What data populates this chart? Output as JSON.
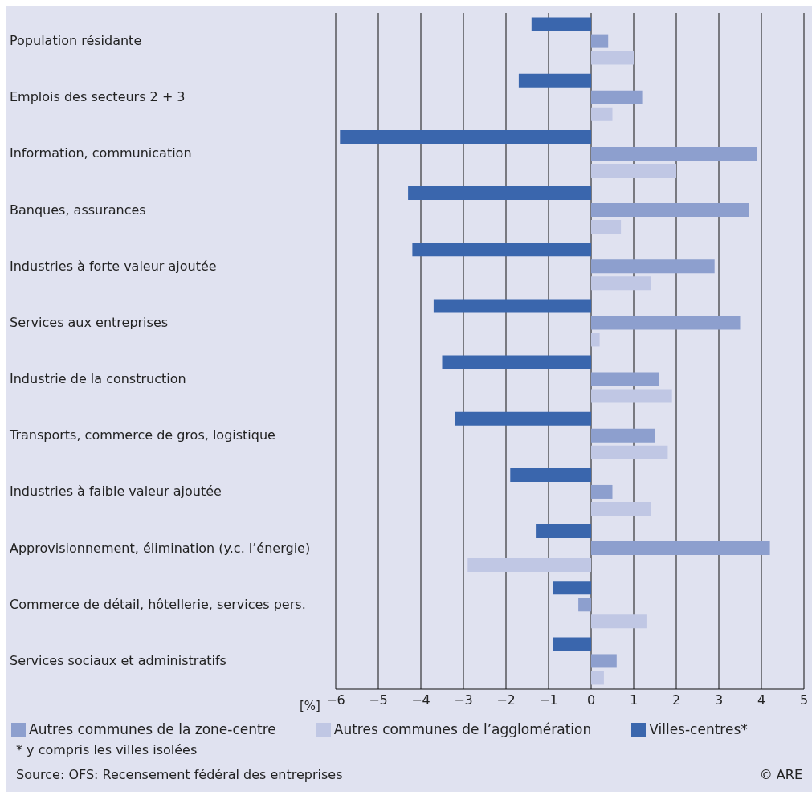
{
  "chart_data": {
    "type": "bar",
    "orientation": "horizontal",
    "xlabel": "[%]",
    "categories": [
      "Population résidante",
      "Emplois des secteurs 2 + 3",
      "Information, communication",
      "Banques, assurances",
      "Industries à forte valeur ajoutée",
      "Services aux entreprises",
      "Industrie de la construction",
      "Transports, commerce de gros, logistique",
      "Industries à faible valeur ajoutée",
      "Approvisionnement, élimination (y.c. l’énergie)",
      "Commerce de détail, hôtellerie, services pers.",
      "Services sociaux et administratifs"
    ],
    "series": [
      {
        "name": "Villes-centres*",
        "color": "#3a66ad",
        "values": [
          -1.4,
          -1.7,
          -5.9,
          -4.3,
          -4.2,
          -3.7,
          -3.5,
          -3.2,
          -1.9,
          -1.3,
          -0.9,
          -0.9
        ]
      },
      {
        "name": "Autres communes de la zone-centre",
        "color": "#8d9fce",
        "values": [
          0.4,
          1.2,
          3.9,
          3.7,
          2.9,
          3.5,
          1.6,
          1.5,
          0.5,
          4.2,
          -0.3,
          0.6
        ]
      },
      {
        "name": "Autres communes de l’agglomération",
        "color": "#c0c7e4",
        "values": [
          1.0,
          0.5,
          2.0,
          0.7,
          1.4,
          0.2,
          1.9,
          1.8,
          1.4,
          -2.9,
          1.3,
          0.3
        ]
      }
    ],
    "xlim": [
      -6,
      5
    ],
    "xticks": [
      {
        "value": -6,
        "label": "−6"
      },
      {
        "value": -5,
        "label": "−5"
      },
      {
        "value": -4,
        "label": "−4"
      },
      {
        "value": -3,
        "label": "−3"
      },
      {
        "value": -2,
        "label": "−2"
      },
      {
        "value": -1,
        "label": "−1"
      },
      0,
      1,
      2,
      3,
      4,
      5
    ],
    "grid": "x",
    "legend": "bottom",
    "annotations": [
      "* y compris les villes isolées",
      "Source: OFS: Recensement fédéral des entreprises",
      "© ARE"
    ]
  }
}
